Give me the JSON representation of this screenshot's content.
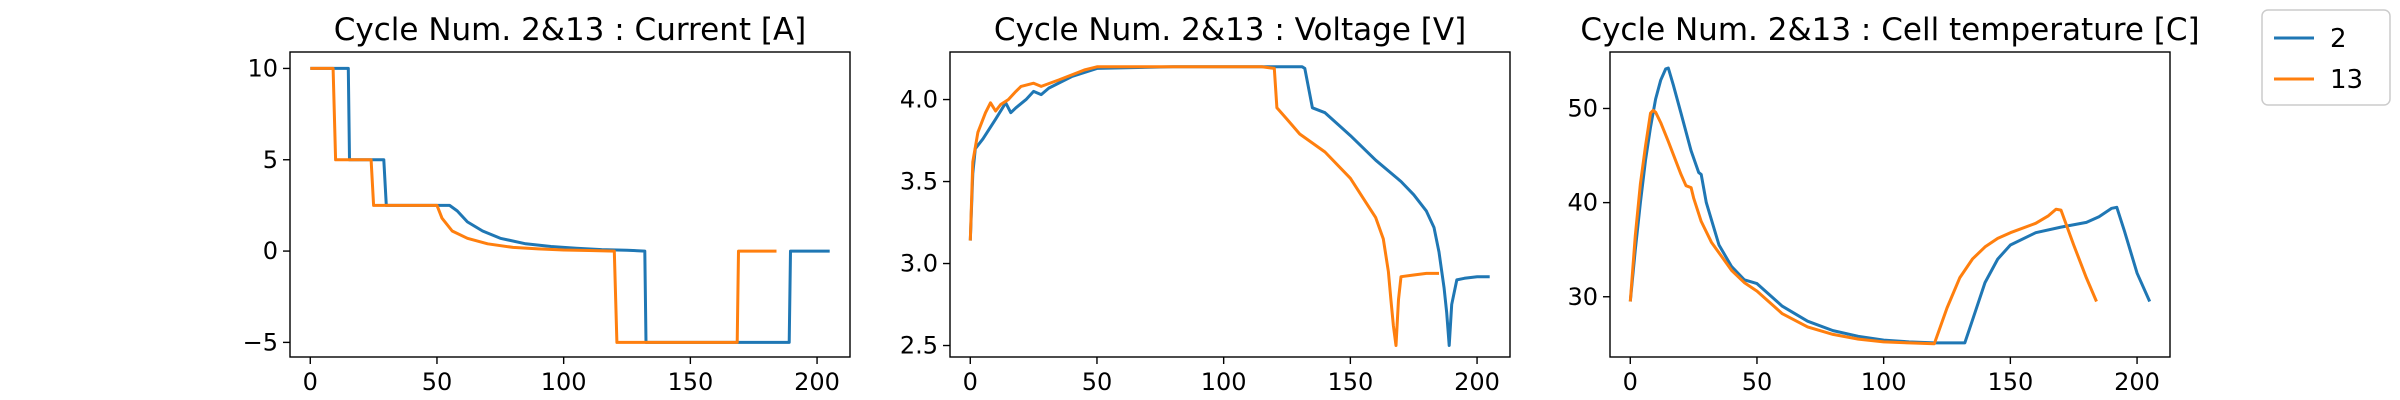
{
  "chart_data": [
    {
      "type": "line",
      "title": "Cycle Num. 2&13 : Current [A]",
      "xlabel": "",
      "ylabel": "",
      "xlim": [
        -8,
        213
      ],
      "ylim": [
        -5.8,
        10.9
      ],
      "xticks": [
        0,
        50,
        100,
        150,
        200
      ],
      "yticks": [
        -5,
        0,
        5,
        10
      ],
      "xtick_labels": [
        "0",
        "50",
        "100",
        "150",
        "200"
      ],
      "ytick_labels": [
        "−5",
        "0",
        "5",
        "10"
      ],
      "series": [
        {
          "name": "2",
          "color": "#1f77b4",
          "x": [
            0,
            15,
            15.5,
            27,
            27.5,
            29,
            30,
            55,
            58,
            62,
            68,
            75,
            85,
            95,
            105,
            115,
            125,
            132,
            132.5,
            133,
            188,
            189,
            189.5,
            205
          ],
          "y": [
            10,
            10,
            5,
            5,
            5,
            5,
            2.5,
            2.5,
            2.2,
            1.6,
            1.1,
            0.7,
            0.4,
            0.25,
            0.15,
            0.08,
            0.05,
            0,
            -5,
            -5,
            -5,
            -5,
            0,
            0
          ]
        },
        {
          "name": "13",
          "color": "#ff7f0e",
          "x": [
            0,
            9,
            10,
            22,
            23,
            24,
            25,
            50,
            52,
            56,
            62,
            70,
            80,
            90,
            100,
            110,
            120,
            121,
            122,
            168,
            168.5,
            169,
            184
          ],
          "y": [
            10,
            10,
            5,
            5,
            5,
            5,
            2.5,
            2.5,
            1.8,
            1.1,
            0.7,
            0.4,
            0.2,
            0.12,
            0.06,
            0.03,
            0,
            -5,
            -5,
            -5,
            -5,
            0,
            0
          ]
        }
      ]
    },
    {
      "type": "line",
      "title": "Cycle Num. 2&13 : Voltage [V]",
      "xlabel": "",
      "ylabel": "",
      "xlim": [
        -8,
        213
      ],
      "ylim": [
        2.43,
        4.29
      ],
      "xticks": [
        0,
        50,
        100,
        150,
        200
      ],
      "yticks": [
        2.5,
        3.0,
        3.5,
        4.0
      ],
      "xtick_labels": [
        "0",
        "50",
        "100",
        "150",
        "200"
      ],
      "ytick_labels": [
        "2.5",
        "3.0",
        "3.5",
        "4.0"
      ],
      "series": [
        {
          "name": "2",
          "color": "#1f77b4",
          "x": [
            0,
            1,
            2,
            5,
            10,
            14,
            16,
            18,
            22,
            25,
            28,
            31,
            40,
            50,
            80,
            100,
            120,
            131,
            132,
            135,
            140,
            150,
            160,
            170,
            175,
            180,
            183,
            185,
            187,
            188,
            189,
            190,
            192,
            195,
            200,
            205
          ],
          "y": [
            3.14,
            3.55,
            3.7,
            3.76,
            3.88,
            3.98,
            3.92,
            3.95,
            4.0,
            4.05,
            4.03,
            4.07,
            4.14,
            4.19,
            4.2,
            4.2,
            4.2,
            4.2,
            4.19,
            3.95,
            3.92,
            3.78,
            3.63,
            3.5,
            3.42,
            3.32,
            3.22,
            3.07,
            2.85,
            2.7,
            2.5,
            2.75,
            2.9,
            2.91,
            2.92,
            2.92
          ]
        },
        {
          "name": "13",
          "color": "#ff7f0e",
          "x": [
            0,
            1,
            3,
            6,
            8,
            10,
            12,
            15,
            18,
            20,
            25,
            28,
            35,
            45,
            50,
            80,
            100,
            115,
            120,
            121,
            125,
            130,
            140,
            150,
            155,
            160,
            163,
            165,
            166,
            167,
            168,
            169,
            170,
            175,
            180,
            185
          ],
          "y": [
            3.14,
            3.62,
            3.8,
            3.92,
            3.98,
            3.93,
            3.97,
            4.0,
            4.05,
            4.08,
            4.1,
            4.08,
            4.12,
            4.18,
            4.2,
            4.2,
            4.2,
            4.2,
            4.19,
            3.95,
            3.88,
            3.79,
            3.68,
            3.52,
            3.4,
            3.28,
            3.15,
            2.95,
            2.78,
            2.62,
            2.5,
            2.78,
            2.92,
            2.93,
            2.94,
            2.94
          ]
        }
      ]
    },
    {
      "type": "line",
      "title": "Cycle Num. 2&13 : Cell temperature [C]",
      "xlabel": "",
      "ylabel": "",
      "xlim": [
        -8,
        213
      ],
      "ylim": [
        23.6,
        56.0
      ],
      "xticks": [
        0,
        50,
        100,
        150,
        200
      ],
      "yticks": [
        30,
        40,
        50
      ],
      "xtick_labels": [
        "0",
        "50",
        "100",
        "150",
        "200"
      ],
      "ytick_labels": [
        "30",
        "40",
        "50"
      ],
      "series": [
        {
          "name": "2",
          "color": "#1f77b4",
          "x": [
            0,
            2,
            4,
            6,
            8,
            10,
            12,
            14,
            15,
            17,
            20,
            24,
            27,
            28,
            30,
            35,
            40,
            45,
            50,
            55,
            60,
            70,
            80,
            90,
            100,
            110,
            120,
            132,
            135,
            140,
            145,
            150,
            160,
            170,
            180,
            185,
            190,
            192,
            195,
            200,
            205
          ],
          "y": [
            29.5,
            35,
            40,
            44.5,
            48,
            51,
            53,
            54.2,
            54.3,
            52.5,
            49.5,
            45.5,
            43.2,
            43,
            40,
            35.5,
            33.2,
            31.8,
            31.4,
            30.2,
            29,
            27.4,
            26.4,
            25.8,
            25.4,
            25.2,
            25.1,
            25.1,
            27.5,
            31.5,
            34,
            35.5,
            36.8,
            37.4,
            37.9,
            38.5,
            39.4,
            39.5,
            37,
            32.5,
            29.5
          ]
        },
        {
          "name": "13",
          "color": "#ff7f0e",
          "x": [
            0,
            2,
            4,
            6,
            8,
            9,
            10,
            12,
            15,
            20,
            22,
            24,
            25,
            28,
            32,
            40,
            45,
            50,
            55,
            60,
            70,
            80,
            90,
            100,
            110,
            120,
            125,
            130,
            135,
            140,
            145,
            150,
            160,
            165,
            168,
            170,
            175,
            180,
            184
          ],
          "y": [
            29.5,
            36.5,
            42,
            46,
            49.5,
            49.8,
            49.6,
            48.5,
            46.5,
            43,
            41.8,
            41.6,
            40.5,
            38,
            35.8,
            32.8,
            31.5,
            30.6,
            29.4,
            28.2,
            26.8,
            26,
            25.5,
            25.2,
            25.1,
            25,
            28.8,
            32,
            34,
            35.3,
            36.2,
            36.8,
            37.8,
            38.6,
            39.3,
            39.2,
            35.5,
            32,
            29.5
          ]
        }
      ]
    }
  ],
  "legend": {
    "placement": "right",
    "entries": [
      {
        "label": "2",
        "color": "#1f77b4"
      },
      {
        "label": "13",
        "color": "#ff7f0e"
      }
    ]
  }
}
